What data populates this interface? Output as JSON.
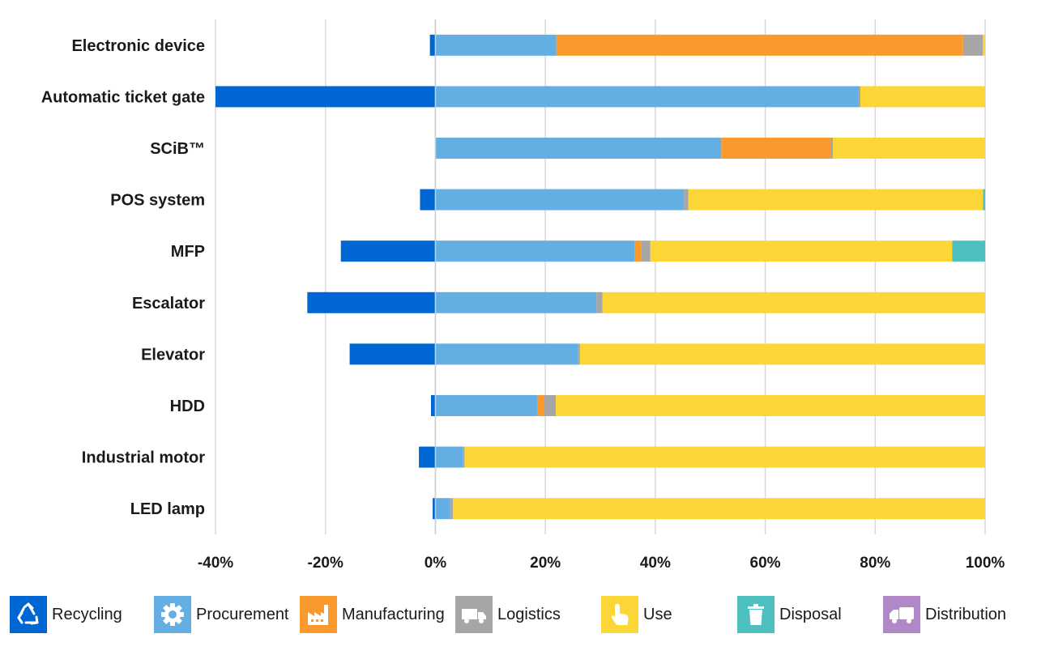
{
  "chart_data": {
    "type": "bar",
    "orientation": "horizontal",
    "stacked": true,
    "categories": [
      "Electronic device",
      "Automatic ticket gate",
      "SCiB™",
      "POS system",
      "MFP",
      "Escalator",
      "Elevator",
      "HDD",
      "Industrial motor",
      "LED lamp"
    ],
    "series": [
      {
        "name": "Recycling",
        "color": "#0066d4",
        "values": [
          -1,
          -40,
          0,
          -2.8,
          -17.2,
          -23.3,
          -15.6,
          -0.8,
          -3,
          -0.5
        ]
      },
      {
        "name": "Procurement",
        "color": "#63aee3",
        "values": [
          22,
          77,
          52,
          45.2,
          36.3,
          29.3,
          26,
          18.5,
          5,
          2.7
        ]
      },
      {
        "name": "Manufacturing",
        "color": "#fa9a2d",
        "values": [
          74,
          0,
          20,
          0,
          1.2,
          0,
          0,
          1.2,
          0,
          0
        ]
      },
      {
        "name": "Logistics",
        "color": "#a6a6a6",
        "values": [
          3.6,
          0.3,
          0.3,
          0.8,
          1.6,
          1.1,
          0.3,
          2.2,
          0.3,
          0.5
        ]
      },
      {
        "name": "Use",
        "color": "#fbd636",
        "values": [
          0.4,
          22.7,
          27.7,
          53.6,
          54.9,
          69.6,
          73.7,
          78.1,
          94.7,
          96.8
        ]
      },
      {
        "name": "Disposal",
        "color": "#4ec0c0",
        "values": [
          0,
          0,
          0,
          0.4,
          6,
          0,
          0,
          0,
          0,
          0
        ]
      },
      {
        "name": "Distribution",
        "color": "#b088c8",
        "values": [
          0,
          0,
          0,
          0,
          0,
          0,
          0,
          0,
          0,
          0
        ]
      }
    ],
    "x_ticks": [
      "-40%",
      "-20%",
      "0%",
      "20%",
      "40%",
      "60%",
      "80%",
      "100%"
    ],
    "x_tick_values": [
      -40,
      -20,
      0,
      20,
      40,
      60,
      80,
      100
    ],
    "xlim": [
      -40,
      100
    ],
    "grid": true,
    "legend_position": "bottom",
    "title": "",
    "xlabel": "",
    "ylabel": ""
  },
  "legend": {
    "items": [
      {
        "label": "Recycling",
        "icon": "recycle-icon",
        "color": "#0066d4"
      },
      {
        "label": "Procurement",
        "icon": "gear-icon",
        "color": "#63aee3"
      },
      {
        "label": "Manufacturing",
        "icon": "factory-icon",
        "color": "#fa9a2d"
      },
      {
        "label": "Logistics",
        "icon": "truck-icon",
        "color": "#a6a6a6"
      },
      {
        "label": "Use",
        "icon": "hand-pointer-icon",
        "color": "#fbd636"
      },
      {
        "label": "Disposal",
        "icon": "trash-can-icon",
        "color": "#4ec0c0"
      },
      {
        "label": "Distribution",
        "icon": "garbage-truck-icon",
        "color": "#b088c8"
      }
    ]
  }
}
